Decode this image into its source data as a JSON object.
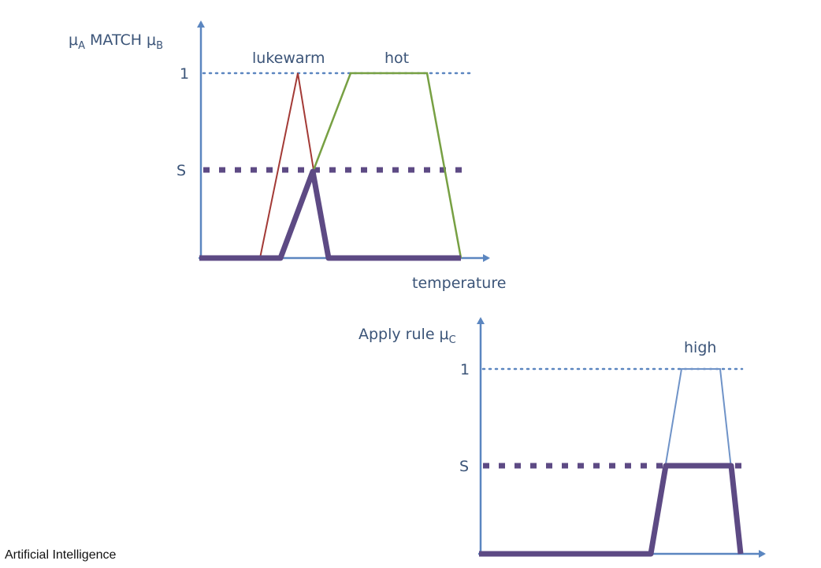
{
  "footer": "Artificial Intelligence",
  "colors": {
    "axis": "#5b86c0",
    "text": "#3b5478",
    "lukewarm": "#a33a36",
    "hot": "#77a043",
    "high": "#6f93c8",
    "result": "#5d4a84"
  },
  "top_plot": {
    "ylabel": {
      "main": "μ",
      "sub1": "A",
      "mid": " MATCH μ",
      "sub2": "B"
    },
    "xlabel": "temperature",
    "tick_one": "1",
    "tick_s": "S",
    "set_labels": [
      "lukewarm",
      "hot"
    ]
  },
  "bottom_plot": {
    "ylabel": {
      "main": "Apply rule μ",
      "sub": "C"
    },
    "tick_one": "1",
    "tick_s": "S",
    "set_label": "high"
  }
}
